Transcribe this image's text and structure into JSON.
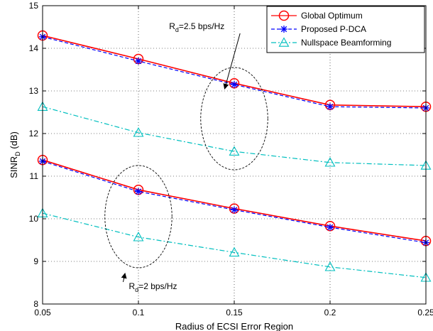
{
  "chart_data": {
    "type": "line",
    "xlabel": "Radius of ECSI Error Region",
    "ylabel_main": "SINR",
    "ylabel_sub": "D",
    "ylabel_unit": " (dB)",
    "xlim": [
      0.05,
      0.25
    ],
    "ylim": [
      8,
      15
    ],
    "grid": true,
    "legend_position": "top-right",
    "x": [
      0.05,
      0.1,
      0.15,
      0.2,
      0.25
    ],
    "x_tick_labels": [
      "0.05",
      "0.1",
      "0.15",
      "0.2",
      "0.25"
    ],
    "y_tick_labels": [
      "8",
      "9",
      "10",
      "11",
      "12",
      "13",
      "14",
      "15"
    ],
    "series": [
      {
        "name": "Global Optimum",
        "group": "Rd=2.5",
        "color": "#ff0000",
        "marker": "circle",
        "dash": "solid",
        "values": [
          14.3,
          13.75,
          13.18,
          12.67,
          12.63
        ]
      },
      {
        "name": "Proposed P-DCA",
        "group": "Rd=2.5",
        "color": "#0000ff",
        "marker": "asterisk",
        "dash": "dashed",
        "values": [
          14.27,
          13.7,
          13.15,
          12.63,
          12.6
        ]
      },
      {
        "name": "Nullspace Beamforming",
        "group": "Rd=2.5",
        "color": "#00bfbf",
        "marker": "triangle",
        "dash": "dashdot",
        "values": [
          12.63,
          12.02,
          11.58,
          11.32,
          11.25
        ]
      },
      {
        "name": "Global Optimum",
        "group": "Rd=2",
        "color": "#ff0000",
        "marker": "circle",
        "dash": "solid",
        "values": [
          11.38,
          10.68,
          10.24,
          9.83,
          9.48
        ]
      },
      {
        "name": "Proposed P-DCA",
        "group": "Rd=2",
        "color": "#0000ff",
        "marker": "asterisk",
        "dash": "dashed",
        "values": [
          11.35,
          10.64,
          10.21,
          9.8,
          9.44
        ]
      },
      {
        "name": "Nullspace Beamforming",
        "group": "Rd=2",
        "color": "#00bfbf",
        "marker": "triangle",
        "dash": "dashdot",
        "values": [
          10.13,
          9.57,
          9.21,
          8.87,
          8.62
        ]
      }
    ],
    "legend": [
      "Global Optimum",
      "Proposed P-DCA",
      "Nullspace Beamforming"
    ],
    "annotations": [
      {
        "id": "upper",
        "main": "R",
        "sub": "d",
        "rest": "=2.5 bps/Hz",
        "ellipse_center": [
          0.15,
          12.35
        ],
        "ellipse_rx": 0.0175,
        "ellipse_ry": 1.2,
        "arrow_to": [
          0.145,
          13.05
        ],
        "label_pos": [
          0.116,
          14.45
        ]
      },
      {
        "id": "lower",
        "main": "R",
        "sub": "d",
        "rest": "=2 bps/Hz",
        "ellipse_center": [
          0.1,
          10.05
        ],
        "ellipse_rx": 0.0175,
        "ellipse_ry": 1.2,
        "arrow_to": [
          0.093,
          8.72
        ],
        "label_pos": [
          0.095,
          8.35
        ]
      }
    ]
  }
}
